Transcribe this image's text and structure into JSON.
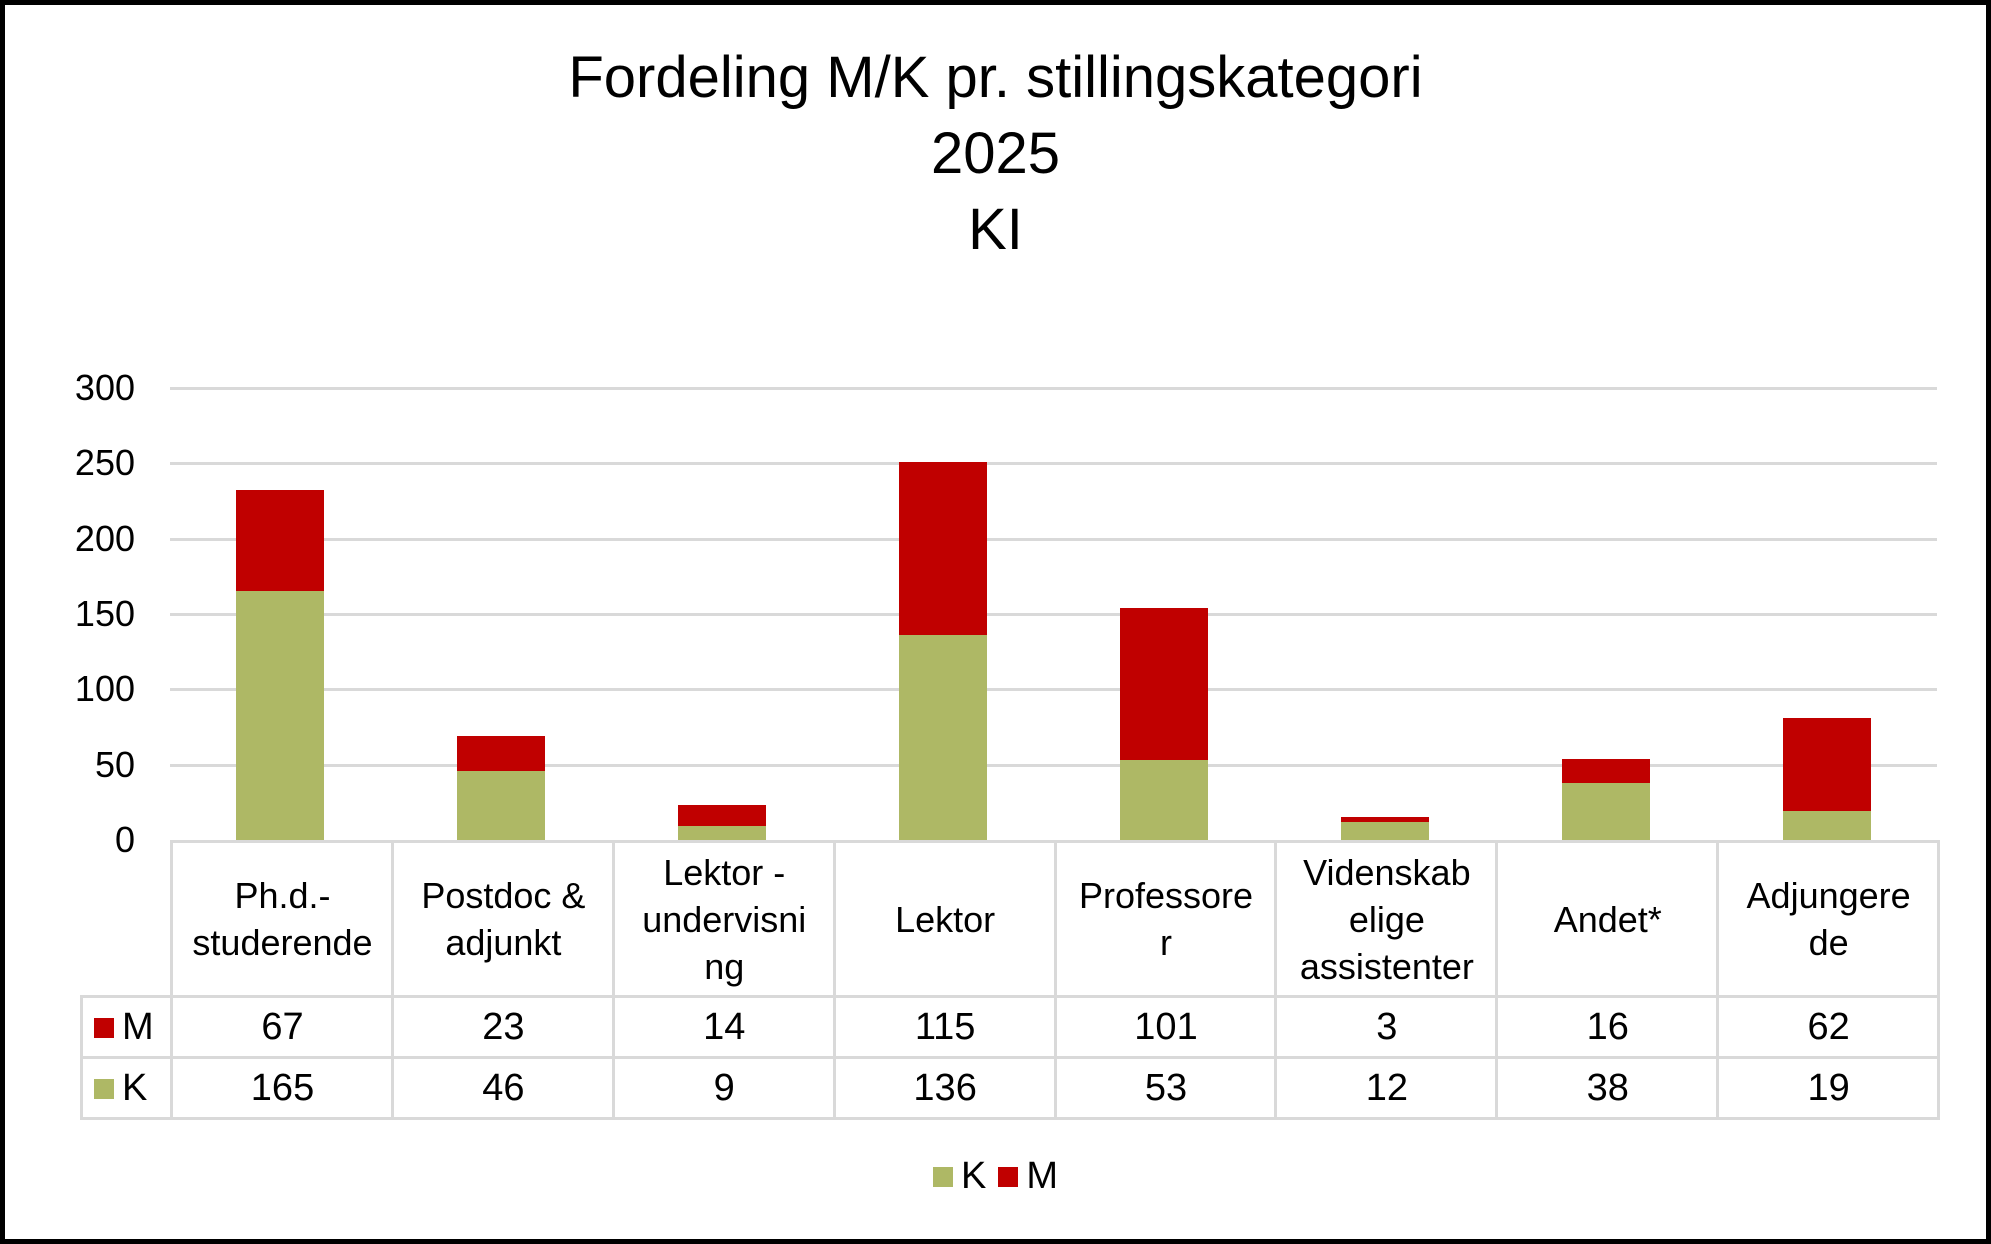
{
  "chart_data": {
    "type": "bar",
    "stacked": true,
    "title": "Fordeling M/K pr. stillingskategori\n2025\nKI",
    "title_lines": [
      "Fordeling M/K pr. stillingskategori",
      "2025",
      "KI"
    ],
    "xlabel": "",
    "ylabel": "",
    "ylim": [
      0,
      300
    ],
    "yticks": [
      0,
      50,
      100,
      150,
      200,
      250,
      300
    ],
    "grid": true,
    "legend_position": "bottom",
    "data_table": true,
    "categories": [
      "Ph.d.-studerende",
      "Postdoc & adjunkt",
      "Lektor - undervisning",
      "Lektor",
      "Professorer",
      "Videnskabelige assistenter",
      "Andet*",
      "Adjungerede"
    ],
    "category_labels_wrapped": [
      "Ph.d.-\nstuderende",
      "Postdoc &\nadjunkt",
      "Lektor -\nundervisni\nng",
      "Lektor",
      "Professore\nr",
      "Videnskab\nelige\nassistenter",
      "Andet*",
      "Adjungere\nde"
    ],
    "series": [
      {
        "name": "K",
        "color": "#AEB865",
        "values": [
          165,
          46,
          9,
          136,
          53,
          12,
          38,
          19
        ]
      },
      {
        "name": "M",
        "color": "#C00000",
        "values": [
          67,
          23,
          14,
          115,
          101,
          3,
          16,
          62
        ]
      }
    ]
  },
  "table": {
    "rows": [
      {
        "label": "M",
        "color": "#C00000",
        "values": [
          "67",
          "23",
          "14",
          "115",
          "101",
          "3",
          "16",
          "62"
        ]
      },
      {
        "label": "K",
        "color": "#AEB865",
        "values": [
          "165",
          "46",
          "9",
          "136",
          "53",
          "12",
          "38",
          "19"
        ]
      }
    ]
  },
  "legend": [
    {
      "label": "K",
      "color": "#AEB865"
    },
    {
      "label": "M",
      "color": "#C00000"
    }
  ],
  "yaxis": {
    "ticks": [
      "300",
      "250",
      "200",
      "150",
      "100",
      "50",
      "0"
    ]
  }
}
